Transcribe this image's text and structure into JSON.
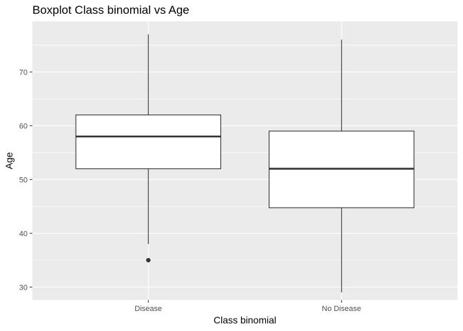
{
  "chart_data": {
    "type": "boxplot",
    "title": "Boxplot Class binomial vs Age",
    "xlabel": "Class binomial",
    "ylabel": "Age",
    "categories": [
      "Disease",
      "No Disease"
    ],
    "boxes": [
      {
        "category": "Disease",
        "whisker_low": 38,
        "q1": 52,
        "median": 58,
        "q3": 62,
        "whisker_high": 77,
        "outliers": [
          35
        ]
      },
      {
        "category": "No Disease",
        "whisker_low": 29,
        "q1": 44.75,
        "median": 52,
        "q3": 59,
        "whisker_high": 76,
        "outliers": []
      }
    ],
    "y_ticks": [
      30,
      40,
      50,
      60,
      70
    ],
    "y_tick_labels": [
      "30",
      "40",
      "50",
      "60",
      "70"
    ],
    "ylim": [
      27.6,
      79.4
    ],
    "grid": true,
    "colors": {
      "panel": "#ebebeb",
      "grid": "#ffffff",
      "box_fill": "#ffffff",
      "box_line": "#333333"
    }
  }
}
